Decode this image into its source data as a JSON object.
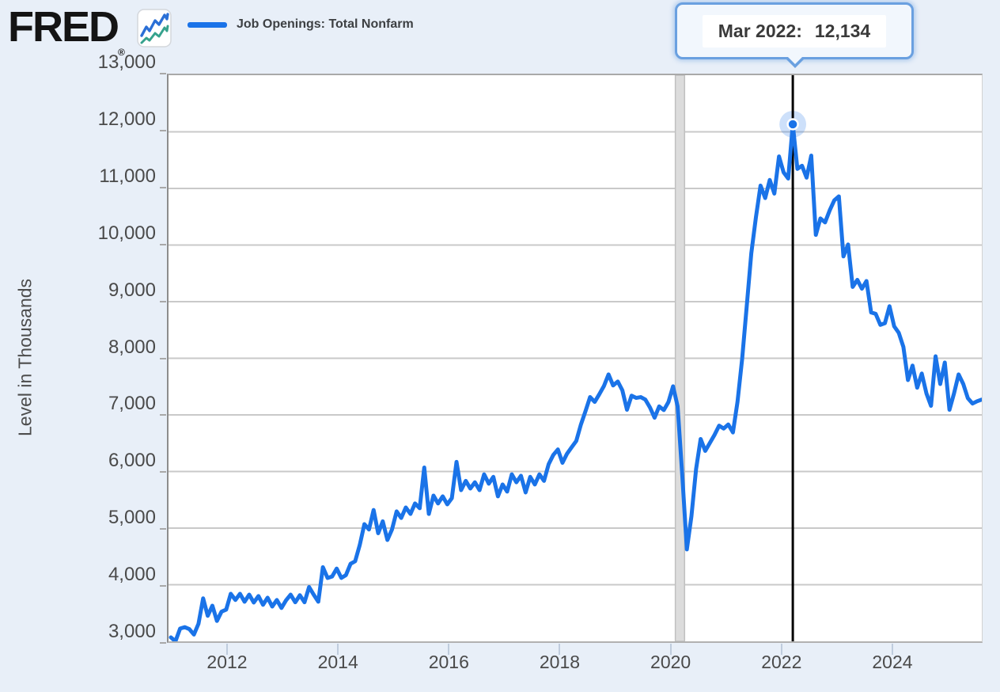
{
  "header": {
    "logo_text": "FRED",
    "registered": "®"
  },
  "legend": {
    "label": "Job Openings: Total Nonfarm"
  },
  "tooltip": {
    "date_label": "Mar 2022:",
    "value": "12,134"
  },
  "y_axis": {
    "title": "Level in Thousands",
    "tick_labels": [
      "13,000",
      "12,000",
      "11,000",
      "10,000",
      "9,000",
      "8,000",
      "7,000",
      "6,000",
      "5,000",
      "4,000",
      "3,000"
    ]
  },
  "x_axis": {
    "tick_labels": [
      "2012",
      "2014",
      "2016",
      "2018",
      "2020",
      "2022",
      "2024"
    ]
  },
  "colors": {
    "accent_blue": "#1a73e8",
    "icon_blue": "#2a6fd6",
    "icon_teal": "#35a28d",
    "recession_gray": "#dcdcdc",
    "recession_edge": "#c0c0c0",
    "gridline_gray": "#c9c9c9",
    "highlight_line_black": "#000000",
    "tooltip_border_blue": "#6aa0e0"
  },
  "chart_data": {
    "type": "line",
    "series_name": "Job Openings: Total Nonfarm",
    "unit": "Level in Thousands",
    "frequency": "monthly",
    "start": "2010-12",
    "end": "2025-08",
    "ylim": [
      3000,
      13000
    ],
    "y_tick_step": 1000,
    "x_tick_years": [
      2012,
      2014,
      2016,
      2018,
      2020,
      2022,
      2024
    ],
    "grid": true,
    "legend_position": "top-left",
    "recession_band": {
      "start": "2020-02",
      "end": "2020-04"
    },
    "highlight": {
      "date": "2022-03",
      "label": "Mar 2022",
      "value": 12134
    },
    "values": [
      3070,
      3000,
      3225,
      3250,
      3215,
      3120,
      3310,
      3760,
      3450,
      3630,
      3360,
      3525,
      3560,
      3840,
      3730,
      3840,
      3700,
      3825,
      3685,
      3800,
      3645,
      3770,
      3615,
      3730,
      3590,
      3725,
      3825,
      3690,
      3815,
      3690,
      3960,
      3825,
      3700,
      4310,
      4120,
      4145,
      4285,
      4120,
      4170,
      4370,
      4415,
      4700,
      5070,
      4975,
      5320,
      4910,
      5120,
      4790,
      4975,
      5295,
      5180,
      5365,
      5250,
      5435,
      5350,
      6070,
      5250,
      5575,
      5435,
      5560,
      5420,
      5530,
      6170,
      5670,
      5835,
      5700,
      5810,
      5670,
      5950,
      5785,
      5905,
      5560,
      5770,
      5645,
      5950,
      5810,
      5925,
      5630,
      5905,
      5770,
      5950,
      5835,
      6130,
      6290,
      6390,
      6155,
      6315,
      6430,
      6540,
      6830,
      7065,
      7315,
      7230,
      7365,
      7510,
      7715,
      7520,
      7590,
      7435,
      7090,
      7340,
      7300,
      7315,
      7270,
      7130,
      6950,
      7150,
      7085,
      7225,
      7505,
      7150,
      5950,
      4625,
      5210,
      6045,
      6575,
      6365,
      6505,
      6645,
      6810,
      6760,
      6830,
      6690,
      7230,
      7990,
      8920,
      9855,
      10495,
      11050,
      10830,
      11150,
      10910,
      11565,
      11285,
      11175,
      12134,
      11345,
      11400,
      11190,
      11580,
      10180,
      10470,
      10400,
      10610,
      10790,
      10860,
      9800,
      10010,
      9260,
      9385,
      9230,
      9365,
      8810,
      8785,
      8590,
      8620,
      8920,
      8565,
      8450,
      8200,
      7615,
      7870,
      7480,
      7730,
      7380,
      7160,
      8035,
      7545,
      7925,
      7090,
      7380,
      7715,
      7545,
      7295,
      7200,
      7240,
      7270
    ]
  }
}
